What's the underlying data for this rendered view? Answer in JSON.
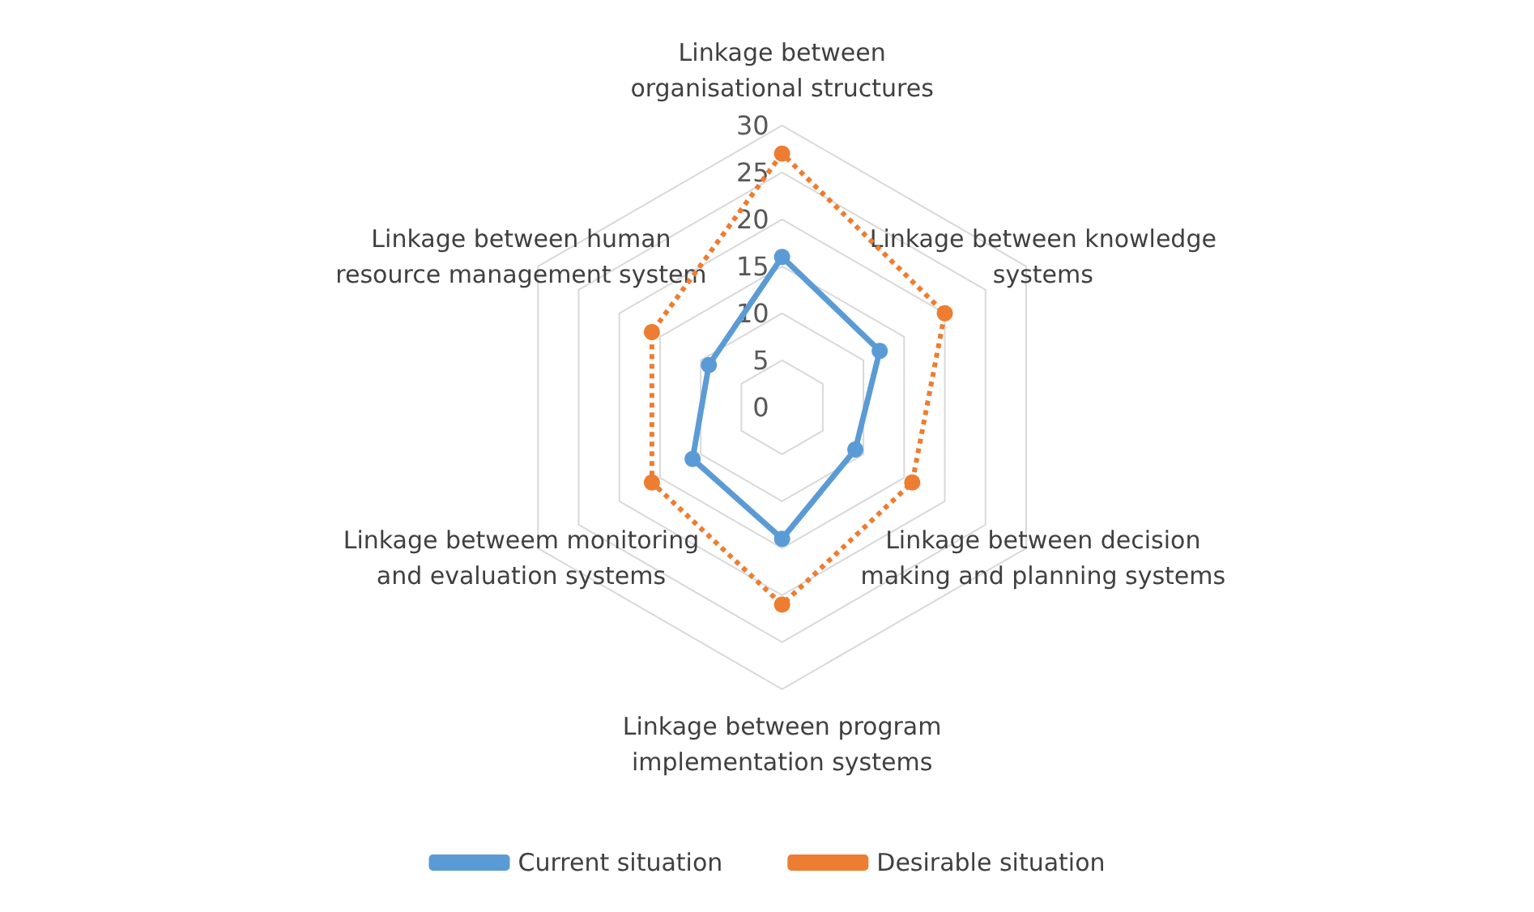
{
  "chart_data": {
    "type": "radar",
    "categories": [
      "Linkage between organisational structures",
      "Linkage between knowledge systems",
      "Linkage between decision making and planning systems",
      "Linkage between program implementation systems",
      "Linkage betweem monitoring and evaluation systems",
      "Linkage between human resource management system"
    ],
    "series": [
      {
        "name": "Current situation",
        "color": "#5b9bd5",
        "line_style": "solid",
        "values": [
          16,
          12,
          9,
          14,
          11,
          9
        ]
      },
      {
        "name": "Desirable situation",
        "color": "#ed7d31",
        "line_style": "dotted",
        "values": [
          27,
          20,
          16,
          21,
          16,
          16
        ]
      }
    ],
    "ylim": [
      0,
      30
    ],
    "yticks": [
      0,
      5,
      10,
      15,
      20,
      25,
      30
    ],
    "grid": true,
    "legend": "bottom",
    "marker": "circle"
  }
}
